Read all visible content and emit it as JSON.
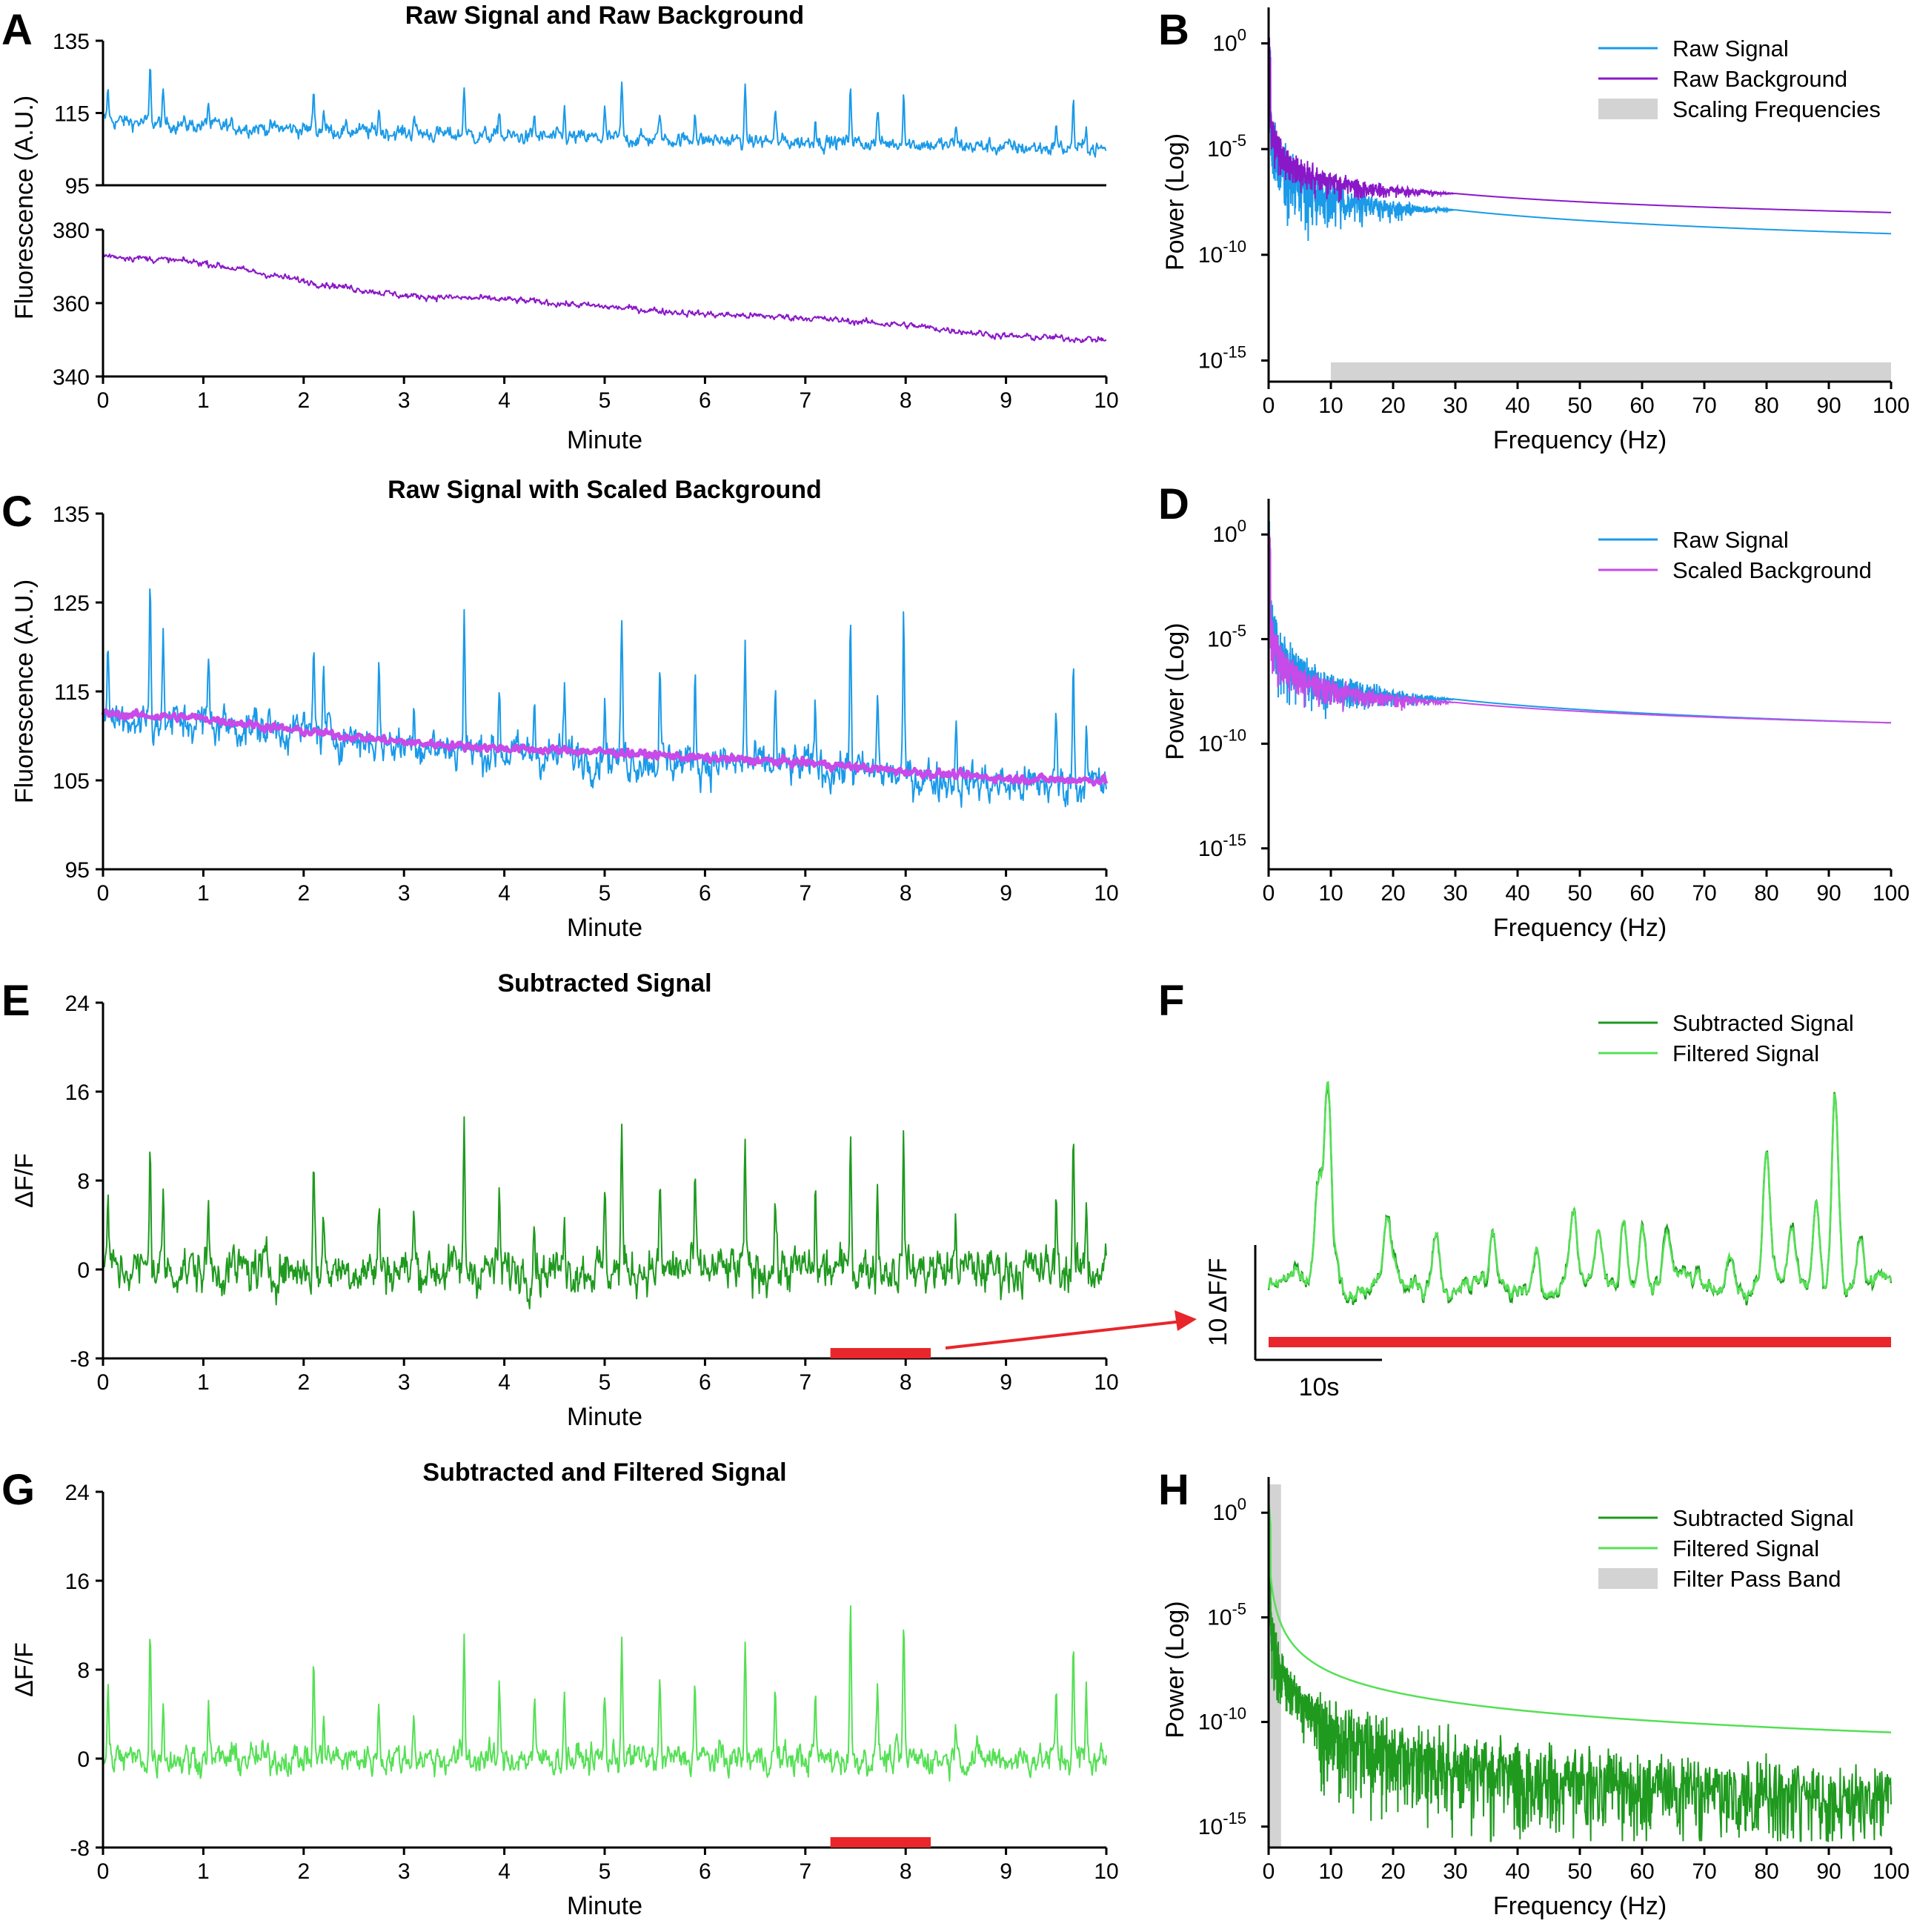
{
  "colors": {
    "raw_signal": "#1a9ae8",
    "raw_background": "#8a18c8",
    "scaled_background": "#c84ae8",
    "subtracted": "#1f9a1f",
    "filtered": "#55e055",
    "highlight": "#e8262b",
    "band": "#d3d3d3"
  },
  "chart_data": [
    {
      "id": "A",
      "letter": "A",
      "type": "line",
      "title": "Raw Signal and Raw Background",
      "xlabel": "Minute",
      "ylabel": "Fluorescence (A.U.)",
      "xlim": [
        0,
        10
      ],
      "xticks": [
        "0",
        "1",
        "2",
        "3",
        "4",
        "5",
        "6",
        "7",
        "8",
        "9",
        "10"
      ],
      "subplots": [
        {
          "name": "Raw Signal",
          "ylim": [
            95,
            135
          ],
          "yticks": [
            "95",
            "115",
            "135"
          ],
          "baseline": [
            113,
            111.5,
            110.5,
            109.5,
            108.5,
            108,
            107.5,
            107,
            106.5,
            105.5,
            105
          ],
          "noise": 2.2,
          "spike_scale": 0.85
        },
        {
          "name": "Raw Background",
          "ylim": [
            340,
            380
          ],
          "yticks": [
            "340",
            "360",
            "380"
          ],
          "baseline": [
            373,
            371,
            366,
            362,
            361,
            359,
            357,
            356,
            354,
            351,
            350
          ],
          "noise": 0.9,
          "spike_scale": 0
        }
      ]
    },
    {
      "id": "B",
      "letter": "B",
      "type": "line",
      "xlabel": "Frequency (Hz)",
      "ylabel": "Power (Log)",
      "yscale": "log",
      "xlim": [
        0,
        100
      ],
      "xticks": [
        "0",
        "10",
        "20",
        "30",
        "40",
        "50",
        "60",
        "70",
        "80",
        "90",
        "100"
      ],
      "ylim_exp": [
        -16,
        1
      ],
      "yticks": [
        {
          "base": "10",
          "exp": "0"
        },
        {
          "base": "10",
          "exp": "-5"
        },
        {
          "base": "10",
          "exp": "-10"
        },
        {
          "base": "10",
          "exp": "-15"
        }
      ],
      "band": {
        "x0": 10,
        "x1": 100,
        "where": "bottom"
      },
      "series": [
        {
          "name": "Raw Signal",
          "color": "raw_signal",
          "start_exp": -1.5,
          "end_exp": -9.0,
          "scatter": 1.5
        },
        {
          "name": "Raw Background",
          "color": "raw_background",
          "start_exp": -2.0,
          "end_exp": -8.0,
          "scatter": 0.9
        }
      ],
      "legend": [
        "Raw Signal",
        "Raw Background",
        "Scaling Frequencies"
      ]
    },
    {
      "id": "C",
      "letter": "C",
      "type": "line",
      "title": "Raw Signal with Scaled Background",
      "xlabel": "Minute",
      "ylabel": "Fluorescence (A.U.)",
      "xlim": [
        0,
        10
      ],
      "xticks": [
        "0",
        "1",
        "2",
        "3",
        "4",
        "5",
        "6",
        "7",
        "8",
        "9",
        "10"
      ],
      "ylim": [
        95,
        135
      ],
      "yticks": [
        "95",
        "105",
        "115",
        "125",
        "135"
      ],
      "series": [
        {
          "name": "Raw Signal",
          "color": "raw_signal",
          "baseline": [
            112,
            111.5,
            110.5,
            109,
            108,
            107.5,
            107,
            106.5,
            105.5,
            104.5,
            104.5
          ],
          "noise": 2.3,
          "spike_scale": 0.9,
          "width": 2
        },
        {
          "name": "Scaled Background",
          "color": "scaled_background",
          "baseline": [
            112.5,
            112,
            110.5,
            109.3,
            108.6,
            108.2,
            107.5,
            107,
            106,
            105.2,
            105
          ],
          "noise": 0.45,
          "spike_scale": 0,
          "width": 5
        }
      ]
    },
    {
      "id": "D",
      "letter": "D",
      "type": "line",
      "xlabel": "Frequency (Hz)",
      "ylabel": "Power (Log)",
      "yscale": "log",
      "xlim": [
        0,
        100
      ],
      "xticks": [
        "0",
        "10",
        "20",
        "30",
        "40",
        "50",
        "60",
        "70",
        "80",
        "90",
        "100"
      ],
      "ylim_exp": [
        -16,
        1
      ],
      "yticks": [
        {
          "base": "10",
          "exp": "0"
        },
        {
          "base": "10",
          "exp": "-5"
        },
        {
          "base": "10",
          "exp": "-10"
        },
        {
          "base": "10",
          "exp": "-15"
        }
      ],
      "series": [
        {
          "name": "Raw Signal",
          "color": "raw_signal",
          "start_exp": -1.5,
          "end_exp": -9.0,
          "scatter": 1.4
        },
        {
          "name": "Scaled Background",
          "color": "scaled_background",
          "start_exp": -2.5,
          "end_exp": -9.0,
          "scatter": 1.0
        }
      ],
      "legend": [
        "Raw Signal",
        "Scaled Background"
      ]
    },
    {
      "id": "E",
      "letter": "E",
      "type": "line",
      "title": "Subtracted Signal",
      "xlabel": "Minute",
      "ylabel": "ΔF/F",
      "xlim": [
        0,
        10
      ],
      "xticks": [
        "0",
        "1",
        "2",
        "3",
        "4",
        "5",
        "6",
        "7",
        "8",
        "9",
        "10"
      ],
      "ylim": [
        -8,
        24
      ],
      "yticks": [
        "-8",
        "0",
        "8",
        "16",
        "24"
      ],
      "highlight_range": [
        7.25,
        8.25
      ],
      "series": [
        {
          "name": "Subtracted Signal",
          "color": "subtracted",
          "baseline": [
            0,
            0,
            0,
            0,
            0,
            0,
            0,
            0,
            0,
            0,
            0
          ],
          "noise": 2.1,
          "spike_scale": 0.7,
          "width": 2
        }
      ]
    },
    {
      "id": "F",
      "letter": "F",
      "type": "line",
      "xlabel": "",
      "ylabel": "",
      "scalebar": {
        "y_label": "10 ΔF/F",
        "x_label": "10s"
      },
      "peaks_t": [
        0.08,
        0.095,
        0.11,
        0.19,
        0.27,
        0.36,
        0.43,
        0.49,
        0.53,
        0.57,
        0.6,
        0.64,
        0.74,
        0.8,
        0.84,
        0.88,
        0.91,
        0.95
      ],
      "peaks_h": [
        8,
        17,
        3,
        4.5,
        5,
        3.5,
        4,
        5.5,
        4,
        6,
        5,
        3,
        3.5,
        10,
        3.5,
        7,
        16,
        3
      ],
      "series": [
        {
          "name": "Subtracted Signal",
          "color": "subtracted"
        },
        {
          "name": "Filtered Signal",
          "color": "filtered"
        }
      ],
      "legend": [
        "Subtracted Signal",
        "Filtered Signal"
      ]
    },
    {
      "id": "G",
      "letter": "G",
      "type": "line",
      "title": "Subtracted and Filtered Signal",
      "xlabel": "Minute",
      "ylabel": "ΔF/F",
      "xlim": [
        0,
        10
      ],
      "xticks": [
        "0",
        "1",
        "2",
        "3",
        "4",
        "5",
        "6",
        "7",
        "8",
        "9",
        "10"
      ],
      "ylim": [
        -8,
        24
      ],
      "yticks": [
        "-8",
        "0",
        "8",
        "16",
        "24"
      ],
      "highlight_range": [
        7.25,
        8.25
      ],
      "series": [
        {
          "name": "Filtered Signal",
          "color": "filtered",
          "baseline": [
            0,
            0,
            0,
            0,
            0,
            0,
            0,
            0,
            0,
            0,
            0
          ],
          "noise": 1.4,
          "spike_scale": 0.65,
          "width": 2
        }
      ]
    },
    {
      "id": "H",
      "letter": "H",
      "type": "line",
      "xlabel": "Frequency (Hz)",
      "ylabel": "Power (Log)",
      "yscale": "log",
      "xlim": [
        0,
        100
      ],
      "xticks": [
        "0",
        "10",
        "20",
        "30",
        "40",
        "50",
        "60",
        "70",
        "80",
        "90",
        "100"
      ],
      "ylim_exp": [
        -16,
        1
      ],
      "yticks": [
        {
          "base": "10",
          "exp": "0"
        },
        {
          "base": "10",
          "exp": "-5"
        },
        {
          "base": "10",
          "exp": "-10"
        },
        {
          "base": "10",
          "exp": "-15"
        }
      ],
      "band": {
        "x0": 0,
        "x1": 2,
        "where": "full"
      },
      "series": [
        {
          "name": "Subtracted Signal",
          "color": "subtracted",
          "start_exp": -2.0,
          "end_exp": -12.5,
          "scatter": 2.2
        },
        {
          "name": "Filtered Signal",
          "color": "filtered",
          "start_exp": -1.0,
          "end_exp": -10.5,
          "scatter": 0.0
        }
      ],
      "legend": [
        "Subtracted Signal",
        "Filtered Signal",
        "Filter Pass Band"
      ]
    }
  ],
  "spikes_minutes": [
    0.05,
    0.47,
    0.6,
    1.05,
    2.1,
    2.2,
    2.75,
    3.1,
    3.6,
    3.95,
    4.3,
    4.6,
    5.0,
    5.17,
    5.55,
    5.9,
    6.4,
    6.7,
    7.1,
    7.45,
    7.72,
    7.98,
    8.5,
    9.5,
    9.67,
    9.8
  ],
  "spikes_heights": [
    10,
    17,
    9,
    8,
    13,
    7,
    8,
    7,
    17,
    9,
    7,
    9,
    9,
    18,
    10,
    11,
    15,
    9,
    9,
    20,
    11,
    18,
    7,
    9,
    16,
    9
  ]
}
